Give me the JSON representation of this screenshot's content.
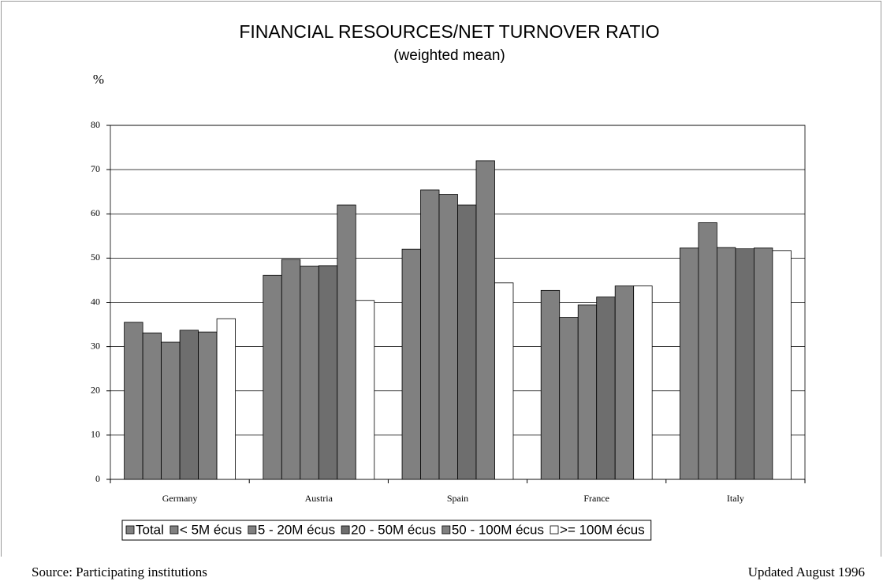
{
  "chart_data": {
    "type": "bar",
    "title": "FINANCIAL RESOURCES/NET TURNOVER RATIO",
    "subtitle": "(weighted mean)",
    "y_label": "%",
    "categories": [
      "Germany",
      "Austria",
      "Spain",
      "France",
      "Italy"
    ],
    "series": [
      {
        "name": "Total",
        "color": "#808080",
        "values": [
          35.5,
          46.1,
          52,
          42.7,
          52.3
        ]
      },
      {
        "name": "< 5M écus",
        "color": "#808080",
        "values": [
          33.1,
          49.7,
          65.4,
          36.6,
          58
        ]
      },
      {
        "name": "5 - 20M écus",
        "color": "#808080",
        "values": [
          31,
          48.2,
          64.4,
          39.4,
          52.4
        ]
      },
      {
        "name": "20 - 50M écus",
        "color": "#6e6e6e",
        "values": [
          33.7,
          48.3,
          62,
          41.2,
          52.1
        ]
      },
      {
        "name": "50 - 100M écus",
        "color": "#808080",
        "values": [
          33.3,
          62,
          72,
          43.7,
          52.3
        ]
      },
      {
        "name": ">= 100M écus",
        "color": "#ffffff",
        "values": [
          36.3,
          40.4,
          44.4,
          43.7,
          51.7
        ]
      }
    ],
    "ylim": [
      0,
      80
    ],
    "yticks": [
      0,
      10,
      20,
      30,
      40,
      50,
      60,
      70,
      80
    ],
    "grid": true,
    "source": "Source: Participating institutions",
    "updated": "Updated August 1996"
  }
}
